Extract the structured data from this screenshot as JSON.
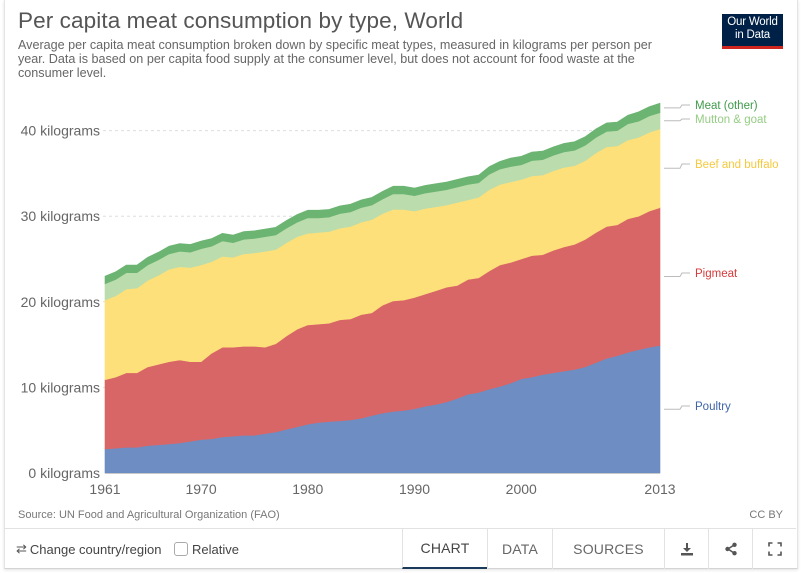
{
  "header": {
    "title": "Per capita meat consumption by type, World",
    "subtitle": "Average per capita meat consumption broken down by specific meat types, measured in kilograms per person per year. Data is based on per capita food supply at the consumer level, but does not account for food waste at the consumer level.",
    "logo_line1": "Our World",
    "logo_line2": "in Data"
  },
  "colors": {
    "poultry": "#6d8dc3",
    "pigmeat": "#d96666",
    "beef": "#fde07a",
    "mutton": "#bbdcac",
    "other": "#6cb472",
    "poultry_label": "#3e64a8",
    "pigmeat_label": "#d63a3a",
    "beef_label": "#f5c93d",
    "mutton_label": "#95cc84",
    "other_label": "#3f9a4a",
    "logo_bg": "#002147",
    "logo_accent": "#ce261e"
  },
  "chart_data": {
    "type": "area",
    "stacked": true,
    "title": "Per capita meat consumption by type, World",
    "xlabel": "",
    "ylabel": "",
    "unit": "kilograms",
    "ylim": [
      0,
      43
    ],
    "xlim": [
      1961,
      2013
    ],
    "grid": true,
    "legend_placement": "right (inline labels)",
    "yticks": [
      {
        "value": 0,
        "label": "0 kilograms"
      },
      {
        "value": 10,
        "label": "10 kilograms"
      },
      {
        "value": 20,
        "label": "20 kilograms"
      },
      {
        "value": 30,
        "label": "30 kilograms"
      },
      {
        "value": 40,
        "label": "40 kilograms"
      }
    ],
    "xticks": [
      {
        "value": 1961,
        "label": "1961"
      },
      {
        "value": 1970,
        "label": "1970"
      },
      {
        "value": 1980,
        "label": "1980"
      },
      {
        "value": 1990,
        "label": "1990"
      },
      {
        "value": 2000,
        "label": "2000"
      },
      {
        "value": 2013,
        "label": "2013"
      }
    ],
    "x": [
      1961,
      1962,
      1963,
      1964,
      1965,
      1966,
      1967,
      1968,
      1969,
      1970,
      1971,
      1972,
      1973,
      1974,
      1975,
      1976,
      1977,
      1978,
      1979,
      1980,
      1981,
      1982,
      1983,
      1984,
      1985,
      1986,
      1987,
      1988,
      1989,
      1990,
      1991,
      1992,
      1993,
      1994,
      1995,
      1996,
      1997,
      1998,
      1999,
      2000,
      2001,
      2002,
      2003,
      2004,
      2005,
      2006,
      2007,
      2008,
      2009,
      2010,
      2011,
      2012,
      2013
    ],
    "series": [
      {
        "name": "Poultry",
        "key": "poultry",
        "values": [
          2.8,
          2.9,
          3.0,
          3.0,
          3.2,
          3.3,
          3.4,
          3.5,
          3.7,
          3.9,
          4.0,
          4.2,
          4.3,
          4.4,
          4.4,
          4.6,
          4.8,
          5.1,
          5.4,
          5.7,
          5.9,
          6.0,
          6.1,
          6.2,
          6.4,
          6.7,
          7.0,
          7.2,
          7.3,
          7.5,
          7.8,
          8.0,
          8.3,
          8.7,
          9.2,
          9.4,
          9.8,
          10.1,
          10.5,
          11.0,
          11.2,
          11.5,
          11.7,
          11.9,
          12.1,
          12.4,
          12.9,
          13.4,
          13.7,
          14.1,
          14.4,
          14.7,
          14.9
        ]
      },
      {
        "name": "Pigmeat",
        "key": "pigmeat",
        "values": [
          8.1,
          8.3,
          8.7,
          8.7,
          9.2,
          9.4,
          9.6,
          9.7,
          9.3,
          9.1,
          10.0,
          10.5,
          10.4,
          10.4,
          10.4,
          10.1,
          10.3,
          10.9,
          11.4,
          11.6,
          11.5,
          11.5,
          11.8,
          11.8,
          12.1,
          12.0,
          12.6,
          12.9,
          12.9,
          13.0,
          13.1,
          13.3,
          13.4,
          13.2,
          13.4,
          13.4,
          13.8,
          14.2,
          14.1,
          14.0,
          14.2,
          14.0,
          14.3,
          14.5,
          14.6,
          14.9,
          15.2,
          15.4,
          15.3,
          15.6,
          15.6,
          15.9,
          16.1
        ]
      },
      {
        "name": "Beef and buffalo",
        "key": "beef",
        "values": [
          9.3,
          9.5,
          9.8,
          9.9,
          10.1,
          10.4,
          10.8,
          10.9,
          11.0,
          11.3,
          10.7,
          10.6,
          10.5,
          10.8,
          10.9,
          11.2,
          11.0,
          10.9,
          10.8,
          10.7,
          10.7,
          10.7,
          10.7,
          10.8,
          10.8,
          10.9,
          10.7,
          10.7,
          10.6,
          10.1,
          10.0,
          9.8,
          9.6,
          9.7,
          9.3,
          9.4,
          9.5,
          9.4,
          9.4,
          9.3,
          9.3,
          9.3,
          9.3,
          9.3,
          9.2,
          9.2,
          9.3,
          9.3,
          9.2,
          9.2,
          9.2,
          9.2,
          9.2
        ]
      },
      {
        "name": "Mutton & goat",
        "key": "mutton",
        "values": [
          1.9,
          1.9,
          1.9,
          1.8,
          1.8,
          1.8,
          1.8,
          1.8,
          1.8,
          1.9,
          1.8,
          1.8,
          1.7,
          1.7,
          1.7,
          1.7,
          1.7,
          1.7,
          1.7,
          1.8,
          1.7,
          1.7,
          1.7,
          1.7,
          1.7,
          1.7,
          1.7,
          1.8,
          1.8,
          1.8,
          1.8,
          1.8,
          1.8,
          1.8,
          1.8,
          1.7,
          1.8,
          1.8,
          1.8,
          1.7,
          1.8,
          1.8,
          1.8,
          1.8,
          1.8,
          1.8,
          1.8,
          1.8,
          1.8,
          1.9,
          1.9,
          1.9,
          1.9
        ]
      },
      {
        "name": "Meat (other)",
        "key": "other",
        "values": [
          0.9,
          0.9,
          0.9,
          0.9,
          0.9,
          0.9,
          0.9,
          0.9,
          0.9,
          0.9,
          0.9,
          0.9,
          0.9,
          0.9,
          0.9,
          0.9,
          0.9,
          0.9,
          0.9,
          0.9,
          0.9,
          0.9,
          0.9,
          0.9,
          0.9,
          0.9,
          0.9,
          0.9,
          0.9,
          0.9,
          0.9,
          0.9,
          0.9,
          0.9,
          0.9,
          0.9,
          0.9,
          0.9,
          1.0,
          1.0,
          1.0,
          1.0,
          1.0,
          1.0,
          1.0,
          1.0,
          1.0,
          1.0,
          1.0,
          1.0,
          1.1,
          1.1,
          1.1
        ]
      }
    ]
  },
  "footer": {
    "source": "Source: UN Food and Agricultural Organization (FAO)",
    "license": "CC BY"
  },
  "controls": {
    "change_region_icon": "swap-arrows-icon",
    "change_region_label": "Change country/region",
    "relative_label": "Relative",
    "relative_checked": false,
    "tabs": [
      {
        "label": "CHART",
        "active": true
      },
      {
        "label": "DATA",
        "active": false
      },
      {
        "label": "SOURCES",
        "active": false
      }
    ],
    "icons": [
      "download-icon",
      "share-icon",
      "fullscreen-icon"
    ]
  }
}
